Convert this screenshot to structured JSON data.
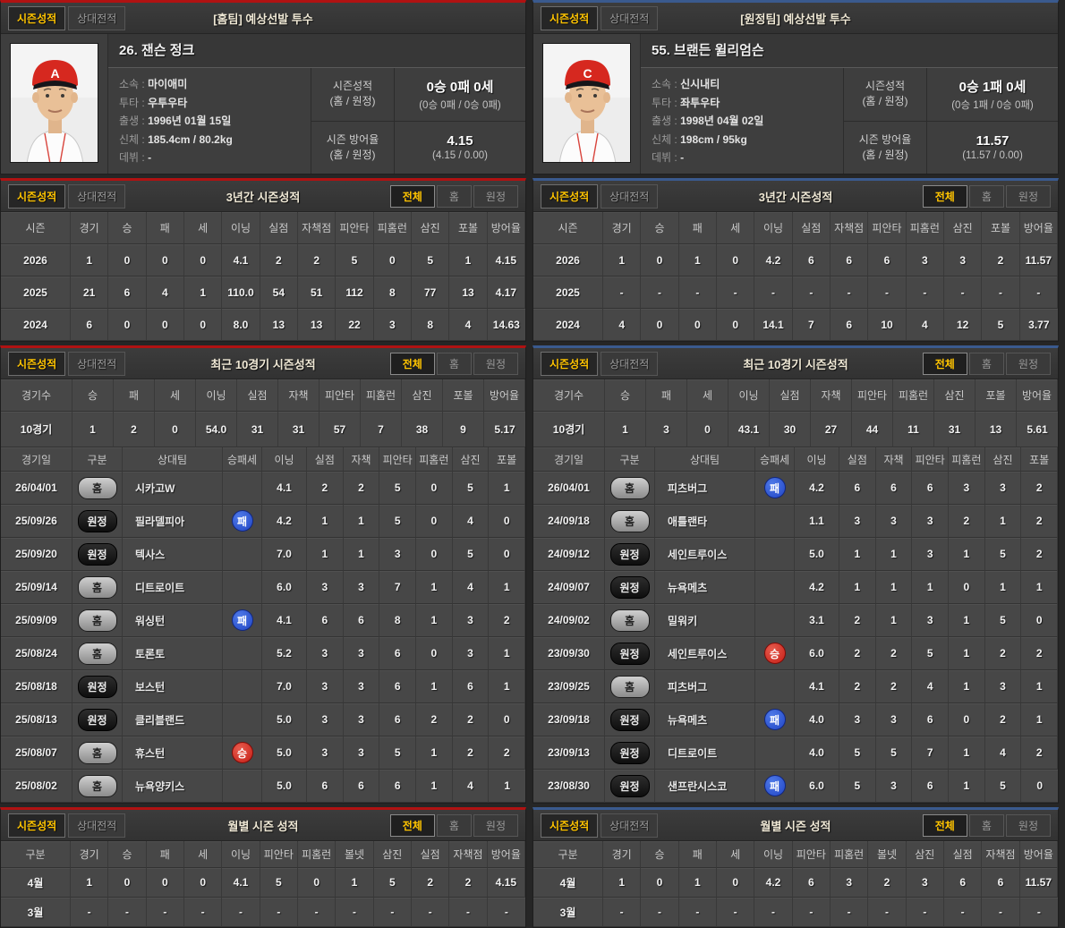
{
  "colors": {
    "home_accent": "#b01212",
    "away_accent": "#3a5a8e",
    "active_tab_text": "#ffc400",
    "win_badge": "#c41f17",
    "loss_badge": "#2145c4",
    "cap_red": "#d6281f"
  },
  "panels": [
    {
      "accent": "#b01212",
      "tabs": {
        "season": "시즌성적",
        "matchup": "상대전적"
      },
      "title": "[홈팀] 예상선발 투수",
      "filters": {
        "all": "전체",
        "home": "홈",
        "away": "원정"
      },
      "player": {
        "name": "26. 잰슨 정크",
        "cap_logo": "A",
        "details": [
          {
            "label": "소속 :",
            "value": "마이애미"
          },
          {
            "label": "투타 :",
            "value": "우투우타"
          },
          {
            "label": "출생 :",
            "value": "1996년 01월 15일"
          },
          {
            "label": "신체 :",
            "value": "185.4cm / 80.2kg"
          },
          {
            "label": "데뷔 :",
            "value": "-"
          }
        ],
        "record": {
          "label_top": "시즌성적",
          "label_sub": "(홈 / 원정)",
          "main": "0승 0패 0세",
          "sub": "(0승 0패 / 0승 0패)"
        },
        "era": {
          "label_top": "시즌 방어율",
          "label_sub": "(홈 / 원정)",
          "main": "4.15",
          "sub": "(4.15 / 0.00)"
        }
      },
      "three_year": {
        "title": "3년간 시즌성적",
        "headers": [
          "시즌",
          "경기",
          "승",
          "패",
          "세",
          "이닝",
          "실점",
          "자책점",
          "피안타",
          "피홈런",
          "삼진",
          "포볼",
          "방어율"
        ],
        "rows": [
          [
            "2026",
            "1",
            "0",
            "0",
            "0",
            "4.1",
            "2",
            "2",
            "5",
            "0",
            "5",
            "1",
            "4.15"
          ],
          [
            "2025",
            "21",
            "6",
            "4",
            "1",
            "110.0",
            "54",
            "51",
            "112",
            "8",
            "77",
            "13",
            "4.17"
          ],
          [
            "2024",
            "6",
            "0",
            "0",
            "0",
            "8.0",
            "13",
            "13",
            "22",
            "3",
            "8",
            "4",
            "14.63"
          ]
        ]
      },
      "recent10": {
        "title": "최근 10경기 시즌성적",
        "headers": [
          "경기수",
          "승",
          "패",
          "세",
          "이닝",
          "실점",
          "자책",
          "피안타",
          "피홈런",
          "삼진",
          "포볼",
          "방어율"
        ],
        "rows": [
          [
            "10경기",
            "1",
            "2",
            "0",
            "54.0",
            "31",
            "31",
            "57",
            "7",
            "38",
            "9",
            "5.17"
          ]
        ]
      },
      "gamelog": {
        "headers": [
          "경기일",
          "구분",
          "상대팀",
          "승패세",
          "이닝",
          "실점",
          "자책",
          "피안타",
          "피홈런",
          "삼진",
          "포볼"
        ],
        "rows": [
          {
            "date": "26/04/01",
            "venue": "홈",
            "opponent": "시카고W",
            "result": "",
            "stats": [
              "4.1",
              "2",
              "2",
              "5",
              "0",
              "5",
              "1"
            ]
          },
          {
            "date": "25/09/26",
            "venue": "원정",
            "opponent": "필라델피아",
            "result": "패",
            "stats": [
              "4.2",
              "1",
              "1",
              "5",
              "0",
              "4",
              "0"
            ]
          },
          {
            "date": "25/09/20",
            "venue": "원정",
            "opponent": "텍사스",
            "result": "",
            "stats": [
              "7.0",
              "1",
              "1",
              "3",
              "0",
              "5",
              "0"
            ]
          },
          {
            "date": "25/09/14",
            "venue": "홈",
            "opponent": "디트로이트",
            "result": "",
            "stats": [
              "6.0",
              "3",
              "3",
              "7",
              "1",
              "4",
              "1"
            ]
          },
          {
            "date": "25/09/09",
            "venue": "홈",
            "opponent": "워싱턴",
            "result": "패",
            "stats": [
              "4.1",
              "6",
              "6",
              "8",
              "1",
              "3",
              "2"
            ]
          },
          {
            "date": "25/08/24",
            "venue": "홈",
            "opponent": "토론토",
            "result": "",
            "stats": [
              "5.2",
              "3",
              "3",
              "6",
              "0",
              "3",
              "1"
            ]
          },
          {
            "date": "25/08/18",
            "venue": "원정",
            "opponent": "보스턴",
            "result": "",
            "stats": [
              "7.0",
              "3",
              "3",
              "6",
              "1",
              "6",
              "1"
            ]
          },
          {
            "date": "25/08/13",
            "venue": "원정",
            "opponent": "클리블랜드",
            "result": "",
            "stats": [
              "5.0",
              "3",
              "3",
              "6",
              "2",
              "2",
              "0"
            ]
          },
          {
            "date": "25/08/07",
            "venue": "홈",
            "opponent": "휴스턴",
            "result": "승",
            "stats": [
              "5.0",
              "3",
              "3",
              "5",
              "1",
              "2",
              "2"
            ]
          },
          {
            "date": "25/08/02",
            "venue": "홈",
            "opponent": "뉴욕양키스",
            "result": "",
            "stats": [
              "5.0",
              "6",
              "6",
              "6",
              "1",
              "4",
              "1"
            ]
          }
        ]
      },
      "monthly": {
        "title": "월별 시즌 성적",
        "headers": [
          "구분",
          "경기",
          "승",
          "패",
          "세",
          "이닝",
          "피안타",
          "피홈런",
          "볼넷",
          "삼진",
          "실점",
          "자책점",
          "방어율"
        ],
        "rows": [
          [
            "4월",
            "1",
            "0",
            "0",
            "0",
            "4.1",
            "5",
            "0",
            "1",
            "5",
            "2",
            "2",
            "4.15"
          ],
          [
            "3월",
            "-",
            "-",
            "-",
            "-",
            "-",
            "-",
            "-",
            "-",
            "-",
            "-",
            "-",
            "-"
          ]
        ]
      }
    },
    {
      "accent": "#3a5a8e",
      "tabs": {
        "season": "시즌성적",
        "matchup": "상대전적"
      },
      "title": "[원정팀] 예상선발 투수",
      "filters": {
        "all": "전체",
        "home": "홈",
        "away": "원정"
      },
      "player": {
        "name": "55. 브랜든 윌리엄슨",
        "cap_logo": "C",
        "details": [
          {
            "label": "소속 :",
            "value": "신시내티"
          },
          {
            "label": "투타 :",
            "value": "좌투우타"
          },
          {
            "label": "출생 :",
            "value": "1998년 04월 02일"
          },
          {
            "label": "신체 :",
            "value": "198cm / 95kg"
          },
          {
            "label": "데뷔 :",
            "value": "-"
          }
        ],
        "record": {
          "label_top": "시즌성적",
          "label_sub": "(홈 / 원정)",
          "main": "0승 1패 0세",
          "sub": "(0승 1패 / 0승 0패)"
        },
        "era": {
          "label_top": "시즌 방어율",
          "label_sub": "(홈 / 원정)",
          "main": "11.57",
          "sub": "(11.57 / 0.00)"
        }
      },
      "three_year": {
        "title": "3년간 시즌성적",
        "headers": [
          "시즌",
          "경기",
          "승",
          "패",
          "세",
          "이닝",
          "실점",
          "자책점",
          "피안타",
          "피홈런",
          "삼진",
          "포볼",
          "방어율"
        ],
        "rows": [
          [
            "2026",
            "1",
            "0",
            "1",
            "0",
            "4.2",
            "6",
            "6",
            "6",
            "3",
            "3",
            "2",
            "11.57"
          ],
          [
            "2025",
            "-",
            "-",
            "-",
            "-",
            "-",
            "-",
            "-",
            "-",
            "-",
            "-",
            "-",
            "-"
          ],
          [
            "2024",
            "4",
            "0",
            "0",
            "0",
            "14.1",
            "7",
            "6",
            "10",
            "4",
            "12",
            "5",
            "3.77"
          ]
        ]
      },
      "recent10": {
        "title": "최근 10경기 시즌성적",
        "headers": [
          "경기수",
          "승",
          "패",
          "세",
          "이닝",
          "실점",
          "자책",
          "피안타",
          "피홈런",
          "삼진",
          "포볼",
          "방어율"
        ],
        "rows": [
          [
            "10경기",
            "1",
            "3",
            "0",
            "43.1",
            "30",
            "27",
            "44",
            "11",
            "31",
            "13",
            "5.61"
          ]
        ]
      },
      "gamelog": {
        "headers": [
          "경기일",
          "구분",
          "상대팀",
          "승패세",
          "이닝",
          "실점",
          "자책",
          "피안타",
          "피홈런",
          "삼진",
          "포볼"
        ],
        "rows": [
          {
            "date": "26/04/01",
            "venue": "홈",
            "opponent": "피츠버그",
            "result": "패",
            "stats": [
              "4.2",
              "6",
              "6",
              "6",
              "3",
              "3",
              "2"
            ]
          },
          {
            "date": "24/09/18",
            "venue": "홈",
            "opponent": "애틀랜타",
            "result": "",
            "stats": [
              "1.1",
              "3",
              "3",
              "3",
              "2",
              "1",
              "2"
            ]
          },
          {
            "date": "24/09/12",
            "venue": "원정",
            "opponent": "세인트루이스",
            "result": "",
            "stats": [
              "5.0",
              "1",
              "1",
              "3",
              "1",
              "5",
              "2"
            ]
          },
          {
            "date": "24/09/07",
            "venue": "원정",
            "opponent": "뉴욕메츠",
            "result": "",
            "stats": [
              "4.2",
              "1",
              "1",
              "1",
              "0",
              "1",
              "1"
            ]
          },
          {
            "date": "24/09/02",
            "venue": "홈",
            "opponent": "밀워키",
            "result": "",
            "stats": [
              "3.1",
              "2",
              "1",
              "3",
              "1",
              "5",
              "0"
            ]
          },
          {
            "date": "23/09/30",
            "venue": "원정",
            "opponent": "세인트루이스",
            "result": "승",
            "stats": [
              "6.0",
              "2",
              "2",
              "5",
              "1",
              "2",
              "2"
            ]
          },
          {
            "date": "23/09/25",
            "venue": "홈",
            "opponent": "피츠버그",
            "result": "",
            "stats": [
              "4.1",
              "2",
              "2",
              "4",
              "1",
              "3",
              "1"
            ]
          },
          {
            "date": "23/09/18",
            "venue": "원정",
            "opponent": "뉴욕메츠",
            "result": "패",
            "stats": [
              "4.0",
              "3",
              "3",
              "6",
              "0",
              "2",
              "1"
            ]
          },
          {
            "date": "23/09/13",
            "venue": "원정",
            "opponent": "디트로이트",
            "result": "",
            "stats": [
              "4.0",
              "5",
              "5",
              "7",
              "1",
              "4",
              "2"
            ]
          },
          {
            "date": "23/08/30",
            "venue": "원정",
            "opponent": "샌프란시스코",
            "result": "패",
            "stats": [
              "6.0",
              "5",
              "3",
              "6",
              "1",
              "5",
              "0"
            ]
          }
        ]
      },
      "monthly": {
        "title": "월별 시즌 성적",
        "headers": [
          "구분",
          "경기",
          "승",
          "패",
          "세",
          "이닝",
          "피안타",
          "피홈런",
          "볼넷",
          "삼진",
          "실점",
          "자책점",
          "방어율"
        ],
        "rows": [
          [
            "4월",
            "1",
            "0",
            "1",
            "0",
            "4.2",
            "6",
            "3",
            "2",
            "3",
            "6",
            "6",
            "11.57"
          ],
          [
            "3월",
            "-",
            "-",
            "-",
            "-",
            "-",
            "-",
            "-",
            "-",
            "-",
            "-",
            "-",
            "-"
          ]
        ]
      }
    }
  ]
}
